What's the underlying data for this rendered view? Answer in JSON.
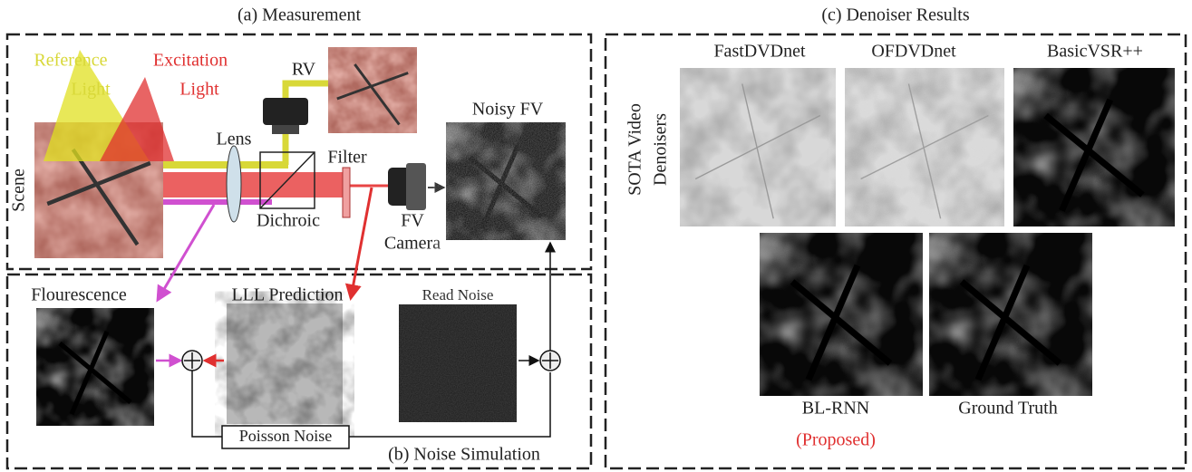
{
  "measurement": {
    "title": "(a) Measurement",
    "reference_light": [
      "Reference",
      "Light"
    ],
    "excitation_light": [
      "Excitation",
      "Light"
    ],
    "rv": "RV",
    "lens": "Lens",
    "scene": "Scene",
    "dichroic": "Dichroic",
    "filter": "Filter",
    "noisy_fv": "Noisy FV",
    "fv_camera": [
      "FV",
      "Camera"
    ]
  },
  "noise_simulation": {
    "title": "(b) Noise Simulation",
    "fluorescence": "Flourescence",
    "lll_prediction": "LLL Prediction",
    "read_noise": "Read Noise",
    "poisson_noise": "Poisson Noise"
  },
  "denoiser_results": {
    "title": "(c) Denoiser Results",
    "group_label": [
      "SOTA Video",
      "Denoisers"
    ],
    "methods": [
      "FastDVDnet",
      "OFDVDnet",
      "BasicVSR++"
    ],
    "proposed": {
      "name": "BL-RNN",
      "note": "(Proposed)"
    },
    "ground_truth": "Ground Truth"
  }
}
